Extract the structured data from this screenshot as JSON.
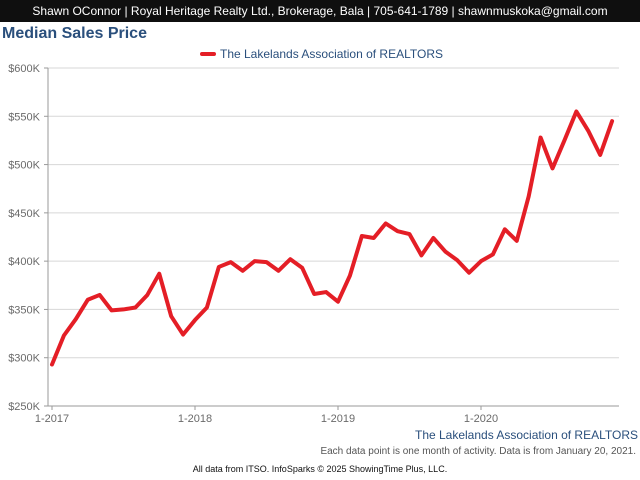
{
  "header": {
    "text": "Shawn OConnor | Royal Heritage Realty Ltd., Brokerage, Bala | 705-641-1789 | shawnmuskoka@gmail.com"
  },
  "colors": {
    "header_bg": "#0f0f0f",
    "title": "#2a4f7c",
    "series": "#e41e26"
  },
  "chart_data": {
    "type": "line",
    "title": "Median Sales Price",
    "xlabel": "",
    "ylabel": "",
    "ylim": [
      250000,
      600000
    ],
    "y_ticks": [
      {
        "value": 250000,
        "label": "$250K"
      },
      {
        "value": 300000,
        "label": "$300K"
      },
      {
        "value": 350000,
        "label": "$350K"
      },
      {
        "value": 400000,
        "label": "$400K"
      },
      {
        "value": 450000,
        "label": "$450K"
      },
      {
        "value": 500000,
        "label": "$500K"
      },
      {
        "value": 550000,
        "label": "$550K"
      },
      {
        "value": 600000,
        "label": "$600K"
      }
    ],
    "x_ticks": [
      "1-2017",
      "1-2018",
      "1-2019",
      "1-2020"
    ],
    "x": [
      "1-2017",
      "2-2017",
      "3-2017",
      "4-2017",
      "5-2017",
      "6-2017",
      "7-2017",
      "8-2017",
      "9-2017",
      "10-2017",
      "11-2017",
      "12-2017",
      "1-2018",
      "2-2018",
      "3-2018",
      "4-2018",
      "5-2018",
      "6-2018",
      "7-2018",
      "8-2018",
      "9-2018",
      "10-2018",
      "11-2018",
      "12-2018",
      "1-2019",
      "2-2019",
      "3-2019",
      "4-2019",
      "5-2019",
      "6-2019",
      "7-2019",
      "8-2019",
      "9-2019",
      "10-2019",
      "11-2019",
      "12-2019",
      "1-2020",
      "2-2020",
      "3-2020",
      "4-2020",
      "5-2020",
      "6-2020",
      "7-2020",
      "8-2020",
      "9-2020",
      "10-2020",
      "11-2020",
      "12-2020"
    ],
    "grid": true,
    "legend": "top-center",
    "series": [
      {
        "name": "The Lakelands Association of REALTORS",
        "values": [
          293000,
          323000,
          340000,
          360000,
          365000,
          349000,
          350000,
          352000,
          365000,
          387000,
          343000,
          324000,
          339000,
          352000,
          394000,
          399000,
          390000,
          400000,
          399000,
          390000,
          402000,
          393000,
          366000,
          368000,
          358000,
          385000,
          426000,
          424000,
          439000,
          431000,
          428000,
          406000,
          424000,
          410000,
          401000,
          388000,
          400000,
          407000,
          433000,
          421000,
          467000,
          528000,
          496000,
          525000,
          555000,
          535000,
          510000,
          545000
        ]
      }
    ]
  },
  "source_label": "The Lakelands Association of REALTORS",
  "note": "Each data point is one month of activity. Data is from January 20, 2021.",
  "footer": "All data from ITSO. InfoSparks © 2025 ShowingTime Plus, LLC."
}
